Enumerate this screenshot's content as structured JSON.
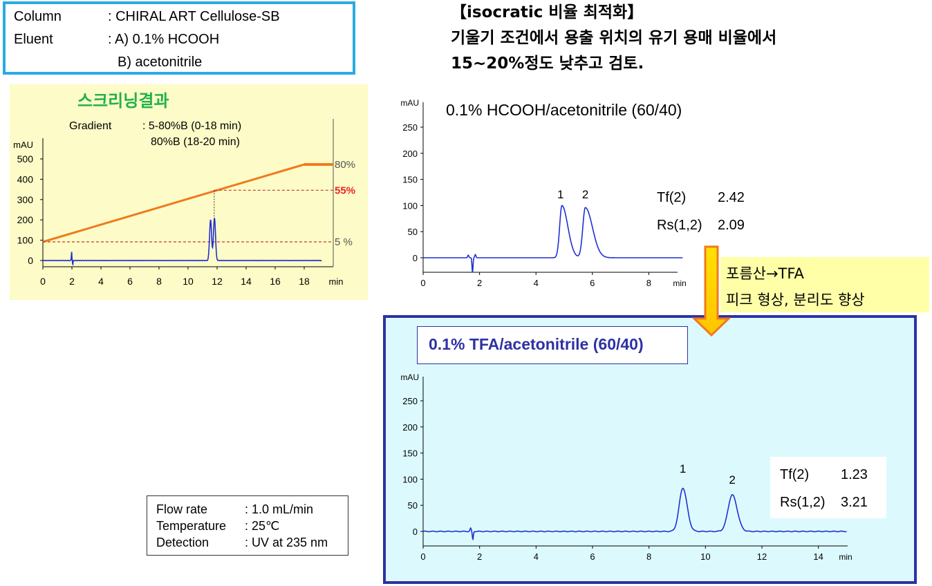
{
  "conditions": {
    "column_label": "Column",
    "column_value": ": CHIRAL ART Cellulose-SB",
    "eluent_label": "Eluent",
    "eluent_a": ": A) 0.1% HCOOH",
    "eluent_b": "B) acetonitrile"
  },
  "screening": {
    "title": "스크리닝결과",
    "gradient_label": "Gradient",
    "gradient_line1": ": 5-80%B (0-18 min)",
    "gradient_line2": "80%B (18-20 min)"
  },
  "heading": {
    "line1": "【isocratic 비율 최적화】",
    "line2": "기울기 조건에서 용출 위치의 유기 용매 비율에서",
    "line3": "15~20%정도 낮추고 검토."
  },
  "top_chart": {
    "title": "0.1% HCOOH/acetonitrile (60/40)",
    "tf_label": "Tf(2)",
    "tf_value": "2.42",
    "rs_label": "Rs(1,2)",
    "rs_value": "2.09"
  },
  "callout": {
    "line1": "포름산→TFA",
    "line2": "피크 형상, 분리도 향상"
  },
  "bottom_chart": {
    "title": "0.1% TFA/acetonitrile (60/40)",
    "tf_label": "Tf(2)",
    "tf_value": "1.23",
    "rs_label": "Rs(1,2)",
    "rs_value": "3.21"
  },
  "flow": {
    "flow_label": "Flow rate",
    "flow_value": ": 1.0 mL/min",
    "temp_label": "Temperature",
    "temp_value": ": 25℃",
    "det_label": "Detection",
    "det_value": ": UV at 235 nm"
  },
  "colors": {
    "trace": "#1f2fd0",
    "gradient": "#f07a1e",
    "highlight": "#e8252a",
    "tfa_border": "#2e31a3",
    "column_border": "#29abe2"
  },
  "chart_data": [
    {
      "type": "line",
      "name": "screening",
      "xlabel": "min",
      "ylabel": "mAU",
      "xlim": [
        0,
        20
      ],
      "ylim": [
        -30,
        560
      ],
      "xticks": [
        "0",
        "2",
        "4",
        "6",
        "8",
        "10",
        "12",
        "14",
        "16",
        "18",
        "min"
      ],
      "yticks": [
        "0",
        "100",
        "200",
        "300",
        "400",
        "500"
      ],
      "peaks": [
        {
          "t": 11.55,
          "h": 200,
          "w": 0.07
        },
        {
          "t": 11.82,
          "h": 210,
          "w": 0.07
        }
      ],
      "gradient_percent": {
        "x": [
          0,
          18,
          20
        ],
        "y": [
          5,
          80,
          80
        ]
      },
      "reference_levels": [
        {
          "label": "80%",
          "value": 80
        },
        {
          "label": "55%",
          "value": 55
        },
        {
          "label": "5 %",
          "value": 5
        }
      ],
      "elution_time": 11.8
    },
    {
      "type": "line",
      "name": "HCOOH 60/40",
      "xlabel": "min",
      "ylabel": "mAU",
      "xlim": [
        0,
        9
      ],
      "ylim": [
        -30,
        300
      ],
      "xticks": [
        "0",
        "2",
        "4",
        "6",
        "8",
        "min"
      ],
      "yticks": [
        "0",
        "50",
        "100",
        "150",
        "200",
        "250",
        "mAU"
      ],
      "peaks": [
        {
          "label": "1",
          "t": 4.92,
          "h": 100
        },
        {
          "label": "2",
          "t": 5.75,
          "h": 96
        }
      ]
    },
    {
      "type": "line",
      "name": "TFA 60/40",
      "xlabel": "min",
      "ylabel": "mAU",
      "xlim": [
        0,
        15
      ],
      "ylim": [
        -30,
        300
      ],
      "xticks": [
        "0",
        "2",
        "4",
        "6",
        "8",
        "10",
        "12",
        "14",
        "min"
      ],
      "yticks": [
        "0",
        "50",
        "100",
        "150",
        "200",
        "250",
        "mAU"
      ],
      "peaks": [
        {
          "label": "1",
          "t": 9.2,
          "h": 83
        },
        {
          "label": "2",
          "t": 10.95,
          "h": 70
        }
      ]
    }
  ]
}
